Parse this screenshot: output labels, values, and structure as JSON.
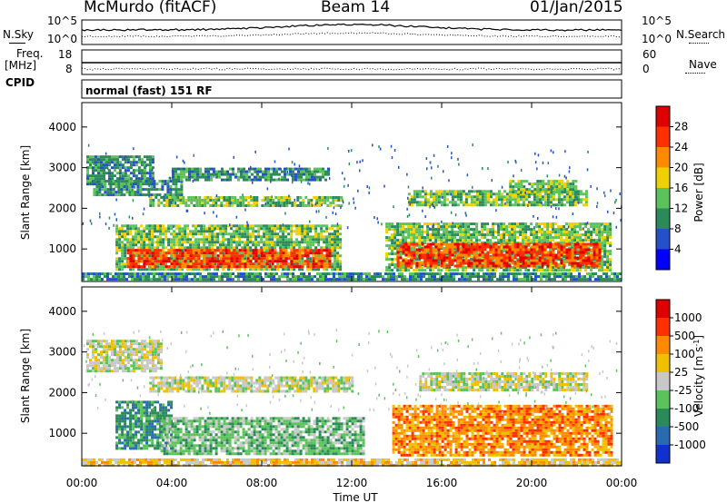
{
  "header": {
    "station": "McMurdo (fitACF)",
    "beam": "Beam 14",
    "date": "01/Jan/2015"
  },
  "noise_panel": {
    "left_label": "N.Sky",
    "right_label": "N.Search",
    "left_ticks": [
      "10^5",
      "10^0"
    ],
    "right_ticks": [
      "10^5",
      "10^0"
    ]
  },
  "freq_panel": {
    "left_label_1": "Freq.",
    "left_label_2": "[MHz]",
    "left_ticks": [
      "18",
      "8"
    ],
    "right_label": "Nave",
    "right_ticks": [
      "60",
      "0"
    ]
  },
  "cpid": {
    "label": "CPID",
    "value": "normal (fast) 151 RF"
  },
  "chart_data": [
    {
      "type": "heatmap",
      "ylabel": "Slant Range [km]",
      "ylim": [
        200,
        4600
      ],
      "yticks": [
        "1000",
        "2000",
        "3000",
        "4000"
      ],
      "xlim": [
        "00:00",
        "24:00"
      ],
      "colorbar": {
        "label": "Power [dB]",
        "ticks": [
          "4",
          "8",
          "12",
          "16",
          "20",
          "24",
          "28"
        ],
        "colors": [
          "#0000ff",
          "#2550c8",
          "#2a8a5a",
          "#5cc25a",
          "#f0d000",
          "#ff8a00",
          "#ff3000",
          "#e00000"
        ]
      },
      "bands": [
        {
          "t0": 0.2,
          "t1": 3.2,
          "r0": 2600,
          "r1": 3300,
          "level": 2
        },
        {
          "t0": 0.5,
          "t1": 4.5,
          "r0": 2300,
          "r1": 2700,
          "level": 2
        },
        {
          "t0": 3.0,
          "t1": 11.5,
          "r0": 2050,
          "r1": 2300,
          "level": 3
        },
        {
          "t0": 4.0,
          "t1": 11.0,
          "r0": 2700,
          "r1": 3000,
          "level": 2
        },
        {
          "t0": 1.5,
          "t1": 11.5,
          "r0": 500,
          "r1": 1600,
          "level": 3
        },
        {
          "t0": 2.0,
          "t1": 11.0,
          "r0": 550,
          "r1": 1000,
          "level": 6
        },
        {
          "t0": 13.5,
          "t1": 23.5,
          "r0": 500,
          "r1": 1650,
          "level": 3
        },
        {
          "t0": 14.0,
          "t1": 23.0,
          "r0": 550,
          "r1": 1150,
          "level": 6
        },
        {
          "t0": 14.5,
          "t1": 22.5,
          "r0": 2050,
          "r1": 2450,
          "level": 3
        },
        {
          "t0": 19.0,
          "t1": 22.0,
          "r0": 2400,
          "r1": 2700,
          "level": 3
        },
        {
          "t0": 0.0,
          "t1": 24.0,
          "r0": 220,
          "r1": 420,
          "level": 2
        }
      ]
    },
    {
      "type": "heatmap",
      "ylabel": "Slant Range [km]",
      "ylim": [
        200,
        4600
      ],
      "yticks": [
        "1000",
        "2000",
        "3000",
        "4000"
      ],
      "xlim": [
        "00:00",
        "24:00"
      ],
      "xticks": [
        "00:00",
        "04:00",
        "08:00",
        "12:00",
        "16:00",
        "20:00",
        "00:00"
      ],
      "xlabel": "Time UT",
      "colorbar": {
        "label": "Velocity [m s^-1]",
        "ticks": [
          "1000",
          "500",
          "100",
          "25",
          "-25",
          "-100",
          "-500",
          "-1000"
        ],
        "colors": [
          "#1030d0",
          "#2a6ab0",
          "#2a8a5a",
          "#5cc25a",
          "#c8c8c8",
          "#f0c000",
          "#ff8a00",
          "#ff3000",
          "#e00000"
        ]
      },
      "bands": [
        {
          "t0": 0.2,
          "t1": 3.5,
          "r0": 2500,
          "r1": 3300,
          "level": 4
        },
        {
          "t0": 3.0,
          "t1": 12.0,
          "r0": 2000,
          "r1": 2400,
          "level": 4
        },
        {
          "t0": 1.5,
          "t1": 4.0,
          "r0": 600,
          "r1": 1800,
          "level": 2
        },
        {
          "t0": 3.5,
          "t1": 12.5,
          "r0": 500,
          "r1": 1400,
          "level": 3
        },
        {
          "t0": 13.8,
          "t1": 23.5,
          "r0": 450,
          "r1": 1700,
          "level": 6
        },
        {
          "t0": 15.0,
          "t1": 22.5,
          "r0": 2050,
          "r1": 2500,
          "level": 4
        },
        {
          "t0": 0.0,
          "t1": 24.0,
          "r0": 200,
          "r1": 380,
          "level": 5
        }
      ]
    }
  ]
}
